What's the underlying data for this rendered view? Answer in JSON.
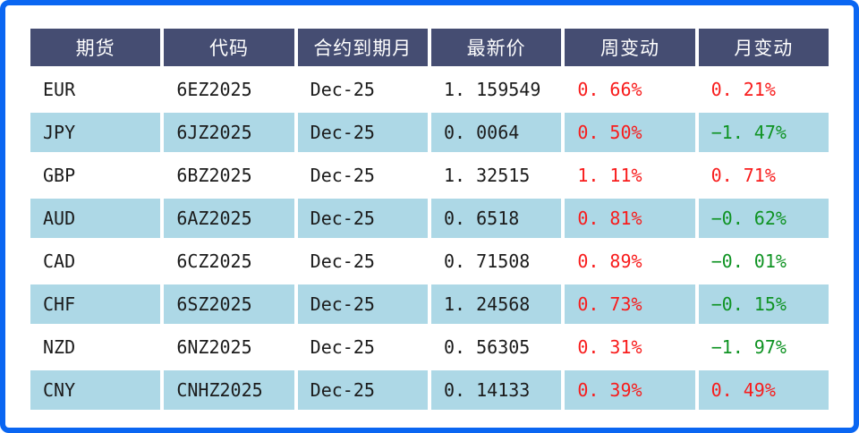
{
  "colors": {
    "frame": "#0a66f2",
    "header_bg": "#454d72",
    "header_text": "#ffffff",
    "row_alt_bg": "#add8e6",
    "text": "#1b1b1b",
    "up": "#f81c1c",
    "down": "#0f9323"
  },
  "chart_data": {
    "type": "table",
    "columns": [
      "期货",
      "代码",
      "合约到期月",
      "最新价",
      "周变动",
      "月变动"
    ],
    "rows": [
      {
        "future": "EUR",
        "code": "6EZ2025",
        "expiry": "Dec-25",
        "price": "1. 159549",
        "week": {
          "text": "0. 66%",
          "dir": "up"
        },
        "month": {
          "text": "0. 21%",
          "dir": "up"
        }
      },
      {
        "future": "JPY",
        "code": "6JZ2025",
        "expiry": "Dec-25",
        "price": "0. 0064",
        "week": {
          "text": "0. 50%",
          "dir": "up"
        },
        "month": {
          "text": "−1. 47%",
          "dir": "down"
        }
      },
      {
        "future": "GBP",
        "code": "6BZ2025",
        "expiry": "Dec-25",
        "price": "1. 32515",
        "week": {
          "text": "1. 11%",
          "dir": "up"
        },
        "month": {
          "text": "0. 71%",
          "dir": "up"
        }
      },
      {
        "future": "AUD",
        "code": "6AZ2025",
        "expiry": "Dec-25",
        "price": "0. 6518",
        "week": {
          "text": "0. 81%",
          "dir": "up"
        },
        "month": {
          "text": "−0. 62%",
          "dir": "down"
        }
      },
      {
        "future": "CAD",
        "code": "6CZ2025",
        "expiry": "Dec-25",
        "price": "0. 71508",
        "week": {
          "text": "0. 89%",
          "dir": "up"
        },
        "month": {
          "text": "−0. 01%",
          "dir": "down"
        }
      },
      {
        "future": "CHF",
        "code": "6SZ2025",
        "expiry": "Dec-25",
        "price": "1. 24568",
        "week": {
          "text": "0. 73%",
          "dir": "up"
        },
        "month": {
          "text": "−0. 15%",
          "dir": "down"
        }
      },
      {
        "future": "NZD",
        "code": "6NZ2025",
        "expiry": "Dec-25",
        "price": "0. 56305",
        "week": {
          "text": "0. 31%",
          "dir": "up"
        },
        "month": {
          "text": "−1. 97%",
          "dir": "down"
        }
      },
      {
        "future": "CNY",
        "code": "CNHZ2025",
        "expiry": "Dec-25",
        "price": "0. 14133",
        "week": {
          "text": "0. 39%",
          "dir": "up"
        },
        "month": {
          "text": "0. 49%",
          "dir": "up"
        }
      }
    ]
  }
}
